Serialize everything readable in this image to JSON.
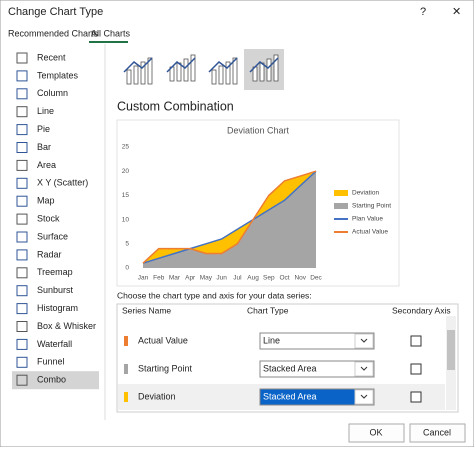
{
  "dialog": {
    "title": "Change Chart Type",
    "help": "?",
    "close": "✕"
  },
  "tabs": [
    "Recommended Charts",
    "All Charts"
  ],
  "chart_types": [
    "Recent",
    "Templates",
    "Column",
    "Line",
    "Pie",
    "Bar",
    "Area",
    "X Y (Scatter)",
    "Map",
    "Stock",
    "Surface",
    "Radar",
    "Treemap",
    "Sunburst",
    "Histogram",
    "Box & Whisker",
    "Waterfall",
    "Funnel",
    "Combo"
  ],
  "selected_chart_type": "Combo",
  "section_title": "Custom Combination",
  "preview_chart": {
    "type": "combo",
    "title": "Deviation Chart",
    "categories": [
      "Jan",
      "Feb",
      "Mar",
      "Apr",
      "May",
      "Jun",
      "Jul",
      "Aug",
      "Sep",
      "Oct",
      "Nov",
      "Dec"
    ],
    "series": [
      {
        "name": "Deviation",
        "color": "#ffc000",
        "kind": "stacked-area",
        "values": [
          0,
          2,
          1,
          0,
          2,
          3,
          3,
          0,
          3,
          4,
          2,
          0
        ]
      },
      {
        "name": "Starting Point",
        "color": "#a5a5a5",
        "kind": "stacked-area",
        "values": [
          1,
          2,
          3,
          4,
          3,
          3,
          5,
          10,
          12,
          14,
          17,
          20
        ]
      },
      {
        "name": "Plan Value",
        "color": "#4472c4",
        "kind": "line",
        "values": [
          1,
          2,
          3,
          4,
          5,
          6,
          8,
          10,
          12,
          14,
          17,
          20
        ]
      },
      {
        "name": "Actual Value",
        "color": "#ed7d31",
        "kind": "line",
        "values": [
          1,
          4,
          4,
          4,
          3,
          3,
          5,
          10,
          15,
          18,
          19,
          20
        ]
      }
    ],
    "ylim": [
      0,
      25
    ],
    "yticks": [
      0,
      5,
      10,
      15,
      20,
      25
    ]
  },
  "series_prompt": "Choose the chart type and axis for your data series:",
  "series_table": {
    "headers": [
      "Series Name",
      "Chart Type",
      "Secondary Axis"
    ],
    "rows": [
      {
        "name": "Actual Value",
        "chart_type": "Line",
        "color": "#ed7d31"
      },
      {
        "name": "Starting Point",
        "chart_type": "Stacked Area",
        "color": "#a5a5a5"
      },
      {
        "name": "Deviation",
        "chart_type": "Stacked Area",
        "color": "#ffc000"
      }
    ]
  },
  "buttons": [
    "OK",
    "Cancel"
  ]
}
